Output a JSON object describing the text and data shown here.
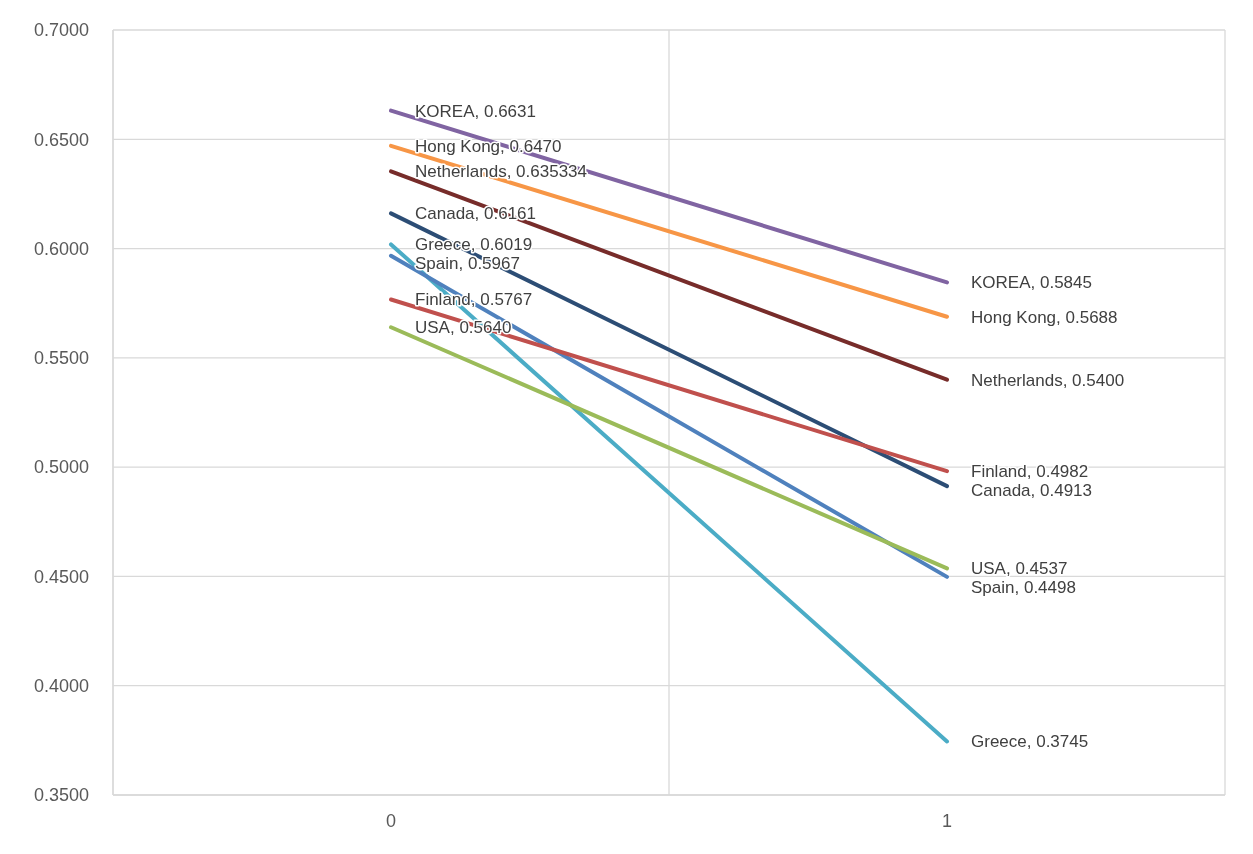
{
  "chart_data": {
    "type": "line",
    "categories": [
      "0",
      "1"
    ],
    "ylim": [
      0.35,
      0.7
    ],
    "yticks": [
      {
        "value": 0.35,
        "label": "0.3500"
      },
      {
        "value": 0.4,
        "label": "0.4000"
      },
      {
        "value": 0.45,
        "label": "0.4500"
      },
      {
        "value": 0.5,
        "label": "0.5000"
      },
      {
        "value": 0.55,
        "label": "0.5500"
      },
      {
        "value": 0.6,
        "label": "0.6000"
      },
      {
        "value": 0.65,
        "label": "0.6500"
      },
      {
        "value": 0.7,
        "label": "0.7000"
      }
    ],
    "grid": true,
    "legend": false,
    "marker": "none",
    "line_style": "solid",
    "series": [
      {
        "name": "KOREA,",
        "color": "#8064a2",
        "values": [
          0.6631,
          0.5845
        ],
        "value_labels": [
          "0.6631",
          "0.5845"
        ]
      },
      {
        "name": "Hong Kong,",
        "color": "#f79646",
        "values": [
          0.647,
          0.5688
        ],
        "value_labels": [
          "0.6470",
          "0.5688"
        ]
      },
      {
        "name": "Netherlands,",
        "color": "#772c2a",
        "values": [
          0.635334,
          0.54
        ],
        "value_labels": [
          "0.635334",
          "0.5400"
        ]
      },
      {
        "name": "Canada,",
        "color": "#2c4d75",
        "values": [
          0.6161,
          0.4913
        ],
        "value_labels": [
          "0.6161",
          "0.4913"
        ]
      },
      {
        "name": "Greece,",
        "color": "#4bacc6",
        "values": [
          0.6019,
          0.3745
        ],
        "value_labels": [
          "0.6019",
          "0.3745"
        ]
      },
      {
        "name": "Spain,",
        "color": "#4f81bd",
        "values": [
          0.5967,
          0.4498
        ],
        "value_labels": [
          "0.5967",
          "0.4498"
        ]
      },
      {
        "name": "Finland,",
        "color": "#c0504d",
        "values": [
          0.5767,
          0.4982
        ],
        "value_labels": [
          "0.5767",
          "0.4982"
        ]
      },
      {
        "name": "USA,",
        "color": "#9bbb59",
        "values": [
          0.564,
          0.4537
        ],
        "value_labels": [
          "0.5640",
          "0.4537"
        ]
      }
    ]
  }
}
